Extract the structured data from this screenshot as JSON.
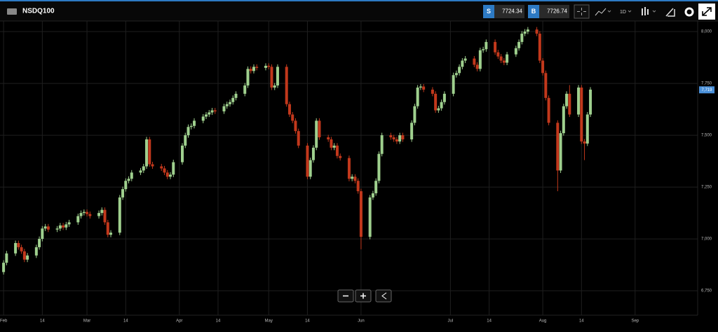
{
  "header": {
    "symbol": "NSDQ100",
    "sell_label": "S",
    "sell_price": 7724.34,
    "buy_label": "B",
    "buy_price": 7726.74,
    "interval": "1D"
  },
  "chart_data": {
    "type": "candlestick",
    "x": [
      0,
      1,
      4,
      5,
      6,
      7,
      8,
      11,
      12,
      13,
      14,
      15,
      18,
      19,
      20,
      21,
      22,
      25,
      26,
      27,
      28,
      29,
      32,
      33,
      34,
      35,
      36,
      39,
      40,
      41,
      42,
      43,
      46,
      47,
      48,
      49,
      50,
      53,
      54,
      55,
      56,
      57,
      60,
      61,
      62,
      63,
      64,
      67,
      68,
      69,
      70,
      71,
      74,
      75,
      76,
      77,
      78,
      81,
      82,
      83,
      84,
      85,
      88,
      89,
      90,
      91,
      92,
      95,
      96,
      97,
      98,
      99,
      102,
      103,
      104,
      105,
      106,
      109,
      110,
      111,
      112,
      113,
      116,
      117,
      118,
      119,
      120,
      123,
      124,
      125,
      126,
      127,
      130,
      131,
      132,
      133,
      134,
      137,
      138,
      139,
      140,
      141,
      144,
      145,
      146,
      147,
      148,
      151,
      152,
      153,
      154,
      155,
      158,
      159,
      160,
      161,
      162,
      165,
      166,
      167,
      168,
      169,
      172,
      173,
      174,
      175,
      176,
      179,
      180,
      181,
      182,
      183,
      186,
      187,
      188,
      189,
      190,
      193,
      194,
      195,
      196,
      197
    ],
    "open": [
      6840,
      6885,
      6930,
      6980,
      6960,
      6940,
      6900,
      6920,
      6960,
      7000,
      7050,
      7060,
      7045,
      7050,
      7065,
      7055,
      7070,
      7080,
      7110,
      7125,
      7130,
      7120,
      7110,
      7125,
      7140,
      7080,
      7020,
      7030,
      7200,
      7240,
      7280,
      7290,
      7320,
      7330,
      7350,
      7480,
      7360,
      7350,
      7340,
      7320,
      7300,
      7310,
      7370,
      7450,
      7500,
      7540,
      7545,
      7570,
      7590,
      7600,
      7610,
      7620,
      7615,
      7640,
      7650,
      7660,
      7680,
      7700,
      7740,
      7820,
      7810,
      7830,
      7825,
      7835,
      7830,
      7730,
      7740,
      7830,
      7650,
      7600,
      7570,
      7520,
      7450,
      7300,
      7380,
      7440,
      7570,
      7490,
      7480,
      7440,
      7450,
      7400,
      7390,
      7290,
      7300,
      7280,
      7230,
      7010,
      7200,
      7220,
      7280,
      7410,
      7500,
      7490,
      7480,
      7470,
      7500,
      7480,
      7560,
      7640,
      7730,
      7735,
      7720,
      7700,
      7620,
      7630,
      7660,
      7700,
      7790,
      7800,
      7830,
      7860,
      7870,
      7840,
      7820,
      7910,
      7915,
      7950,
      7900,
      7880,
      7860,
      7850,
      7890,
      7920,
      7950,
      7990,
      8000,
      8010,
      7990,
      7860,
      7800,
      7680,
      7560,
      7330,
      7510,
      7640,
      7700,
      7600,
      7730,
      7470,
      7460,
      7600
    ],
    "high": [
      6897,
      6942,
      6992,
      6992,
      6972,
      6952,
      6932,
      6972,
      7012,
      7062,
      7072,
      7072,
      7062,
      7077,
      7077,
      7082,
      7092,
      7122,
      7137,
      7142,
      7142,
      7132,
      7137,
      7152,
      7152,
      7092,
      7042,
      7212,
      7252,
      7292,
      7302,
      7332,
      7342,
      7362,
      7492,
      7492,
      7372,
      7362,
      7352,
      7332,
      7322,
      7382,
      7462,
      7512,
      7552,
      7557,
      7582,
      7602,
      7612,
      7622,
      7632,
      7632,
      7652,
      7662,
      7672,
      7692,
      7712,
      7752,
      7832,
      7832,
      7842,
      7842,
      7847,
      7847,
      7842,
      7752,
      7842,
      7842,
      7662,
      7612,
      7582,
      7532,
      7462,
      7392,
      7452,
      7582,
      7582,
      7502,
      7492,
      7462,
      7462,
      7412,
      7402,
      7312,
      7312,
      7292,
      7242,
      7212,
      7232,
      7292,
      7422,
      7512,
      7512,
      7502,
      7492,
      7512,
      7512,
      7572,
      7652,
      7742,
      7747,
      7747,
      7732,
      7712,
      7642,
      7672,
      7712,
      7802,
      7812,
      7842,
      7872,
      7882,
      7882,
      7852,
      7922,
      7927,
      7962,
      7962,
      7912,
      7892,
      7872,
      7902,
      7932,
      7962,
      8002,
      8012,
      8022,
      8022,
      8002,
      7872,
      7812,
      7692,
      7572,
      7522,
      7652,
      7712,
      7742,
      7742,
      7742,
      7482,
      7612,
      7732
    ],
    "low": [
      6828,
      6873,
      6918,
      6948,
      6928,
      6888,
      6888,
      6908,
      6948,
      6988,
      7038,
      7033,
      7033,
      7038,
      7043,
      7043,
      7058,
      7068,
      7098,
      7113,
      7108,
      7098,
      7098,
      7113,
      7068,
      7008,
      7008,
      7018,
      7188,
      7228,
      7268,
      7278,
      7308,
      7318,
      7338,
      7348,
      7338,
      7328,
      7308,
      7288,
      7288,
      7298,
      7358,
      7438,
      7488,
      7528,
      7533,
      7558,
      7578,
      7588,
      7598,
      7603,
      7603,
      7628,
      7638,
      7648,
      7668,
      7688,
      7728,
      7798,
      7798,
      7813,
      7813,
      7818,
      7718,
      7718,
      7728,
      7638,
      7588,
      7558,
      7508,
      7438,
      7288,
      7288,
      7368,
      7428,
      7478,
      7468,
      7428,
      7428,
      7388,
      7378,
      7278,
      7278,
      7268,
      7218,
      6950,
      6998,
      7188,
      7208,
      7268,
      7398,
      7478,
      7468,
      7458,
      7458,
      7468,
      7468,
      7548,
      7628,
      7718,
      7708,
      7688,
      7608,
      7608,
      7618,
      7648,
      7688,
      7778,
      7788,
      7818,
      7848,
      7828,
      7808,
      7808,
      7898,
      7903,
      7888,
      7868,
      7848,
      7838,
      7838,
      7878,
      7908,
      7938,
      7978,
      7988,
      7978,
      7848,
      7788,
      7668,
      7548,
      7230,
      7318,
      7498,
      7628,
      7588,
      7588,
      7458,
      7380,
      7448,
      7588
    ],
    "close": [
      6885,
      6930,
      6980,
      6960,
      6940,
      6900,
      6920,
      6960,
      7000,
      7050,
      7060,
      7045,
      7050,
      7065,
      7055,
      7070,
      7080,
      7110,
      7125,
      7130,
      7120,
      7110,
      7125,
      7140,
      7080,
      7020,
      7030,
      7200,
      7240,
      7280,
      7290,
      7320,
      7330,
      7350,
      7480,
      7360,
      7350,
      7340,
      7320,
      7300,
      7310,
      7370,
      7450,
      7500,
      7540,
      7545,
      7570,
      7590,
      7600,
      7610,
      7620,
      7615,
      7640,
      7650,
      7660,
      7680,
      7700,
      7740,
      7820,
      7810,
      7830,
      7825,
      7835,
      7830,
      7730,
      7740,
      7830,
      7650,
      7600,
      7570,
      7520,
      7450,
      7300,
      7380,
      7440,
      7570,
      7490,
      7480,
      7440,
      7450,
      7400,
      7390,
      7290,
      7300,
      7280,
      7230,
      7010,
      7200,
      7220,
      7280,
      7410,
      7500,
      7490,
      7480,
      7470,
      7500,
      7480,
      7560,
      7640,
      7730,
      7735,
      7720,
      7700,
      7620,
      7630,
      7660,
      7700,
      7790,
      7800,
      7830,
      7860,
      7870,
      7840,
      7820,
      7910,
      7915,
      7950,
      7900,
      7880,
      7860,
      7850,
      7890,
      7920,
      7950,
      7990,
      8000,
      8010,
      7990,
      7860,
      7800,
      7680,
      7560,
      7330,
      7510,
      7640,
      7700,
      7600,
      7730,
      7470,
      7460,
      7600,
      7720
    ],
    "up_color": "#9fd08e",
    "down_color": "#c2381c",
    "xlim": [
      -1.2,
      233
    ],
    "xticks": [
      {
        "value": 0,
        "label": "Feb"
      },
      {
        "value": 13,
        "label": "14"
      },
      {
        "value": 28,
        "label": "Mar"
      },
      {
        "value": 41,
        "label": "14"
      },
      {
        "value": 59,
        "label": "Apr"
      },
      {
        "value": 72,
        "label": "14"
      },
      {
        "value": 89,
        "label": "May"
      },
      {
        "value": 102,
        "label": "14"
      },
      {
        "value": 120,
        "label": "Jun"
      },
      {
        "value": 150,
        "label": "Jul"
      },
      {
        "value": 163,
        "label": "14"
      },
      {
        "value": 181,
        "label": "Aug"
      },
      {
        "value": 194,
        "label": "14"
      },
      {
        "value": 212,
        "label": "Sep"
      }
    ],
    "ylim": [
      6632,
      8051
    ],
    "yticks": [
      {
        "value": 6750,
        "label": "6,750"
      },
      {
        "value": 7000,
        "label": "7,000"
      },
      {
        "value": 7250,
        "label": "7,250"
      },
      {
        "value": 7500,
        "label": "7,500"
      },
      {
        "value": 7750,
        "label": "7,750"
      },
      {
        "value": 8000,
        "label": "8,000"
      }
    ],
    "current_price": {
      "value": 7719,
      "label": "7,719"
    },
    "grid": true
  }
}
